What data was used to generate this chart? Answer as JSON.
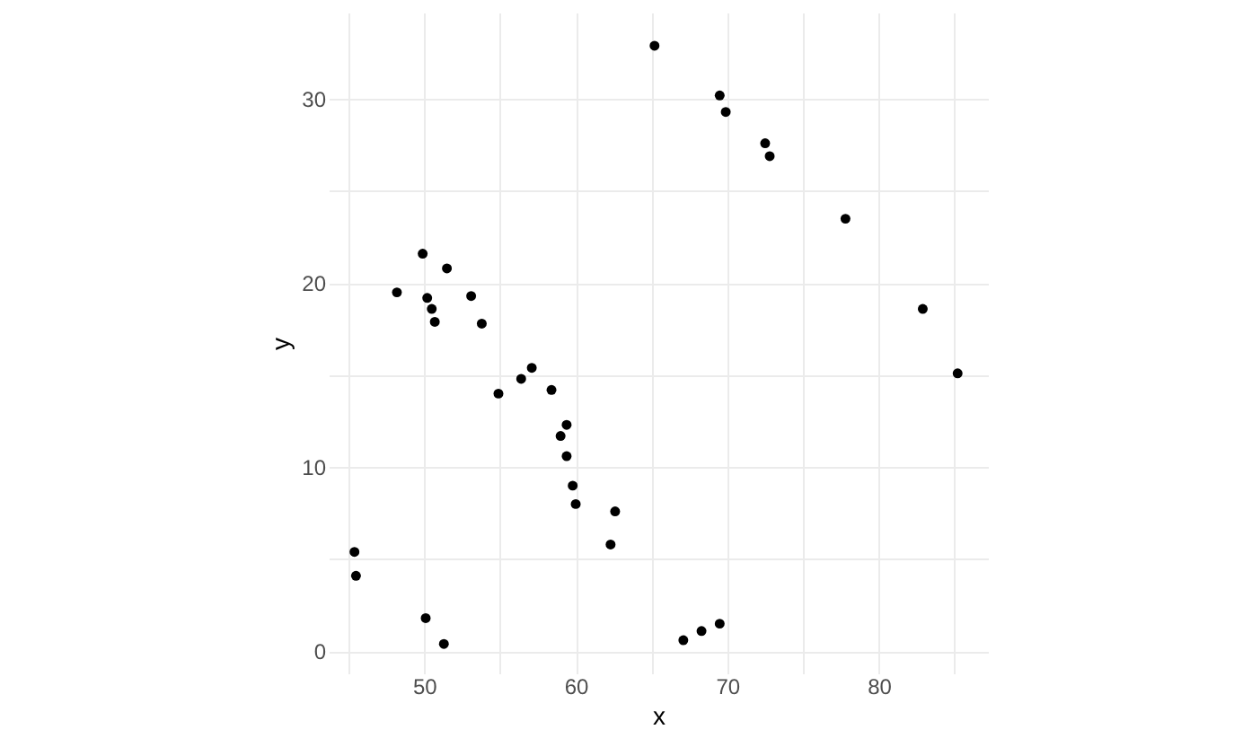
{
  "chart_data": {
    "type": "scatter",
    "xlabel": "x",
    "ylabel": "y",
    "grid": true,
    "marker": "circle",
    "xlim": [
      43.7,
      87.2
    ],
    "ylim": [
      -1.2,
      34.7
    ],
    "xticks": [
      {
        "value": 45,
        "label": null
      },
      50,
      {
        "value": 55,
        "label": null
      },
      60,
      {
        "value": 65,
        "label": null
      },
      70,
      {
        "value": 75,
        "label": null
      },
      80,
      {
        "value": 85,
        "label": null
      }
    ],
    "yticks": [
      0,
      {
        "value": 5,
        "label": null
      },
      10,
      {
        "value": 15,
        "label": null
      },
      20,
      {
        "value": 25,
        "label": null
      },
      30
    ],
    "series": [
      {
        "color": "#000000",
        "x": [
          45.4,
          45.5,
          50.1,
          51.3,
          54.9,
          56.4,
          57.1,
          58.4,
          59.4,
          59.0,
          59.4,
          59.8,
          60.0,
          62.6,
          62.3,
          67.1,
          68.3,
          69.5,
          85.2,
          65.2,
          69.5,
          69.9,
          72.5,
          72.8,
          77.8,
          82.9,
          48.2,
          49.9,
          51.5,
          50.2,
          50.5,
          50.7,
          53.1,
          53.8
        ],
        "values": [
          5.4,
          4.1,
          1.8,
          0.4,
          14.0,
          14.8,
          15.4,
          14.2,
          12.3,
          11.7,
          10.6,
          9.0,
          8.0,
          7.6,
          5.8,
          0.6,
          1.1,
          1.5,
          15.1,
          32.9,
          30.2,
          29.3,
          27.6,
          26.9,
          23.5,
          18.6,
          19.5,
          21.6,
          20.8,
          19.2,
          18.6,
          17.9,
          19.3,
          17.8
        ]
      }
    ]
  }
}
